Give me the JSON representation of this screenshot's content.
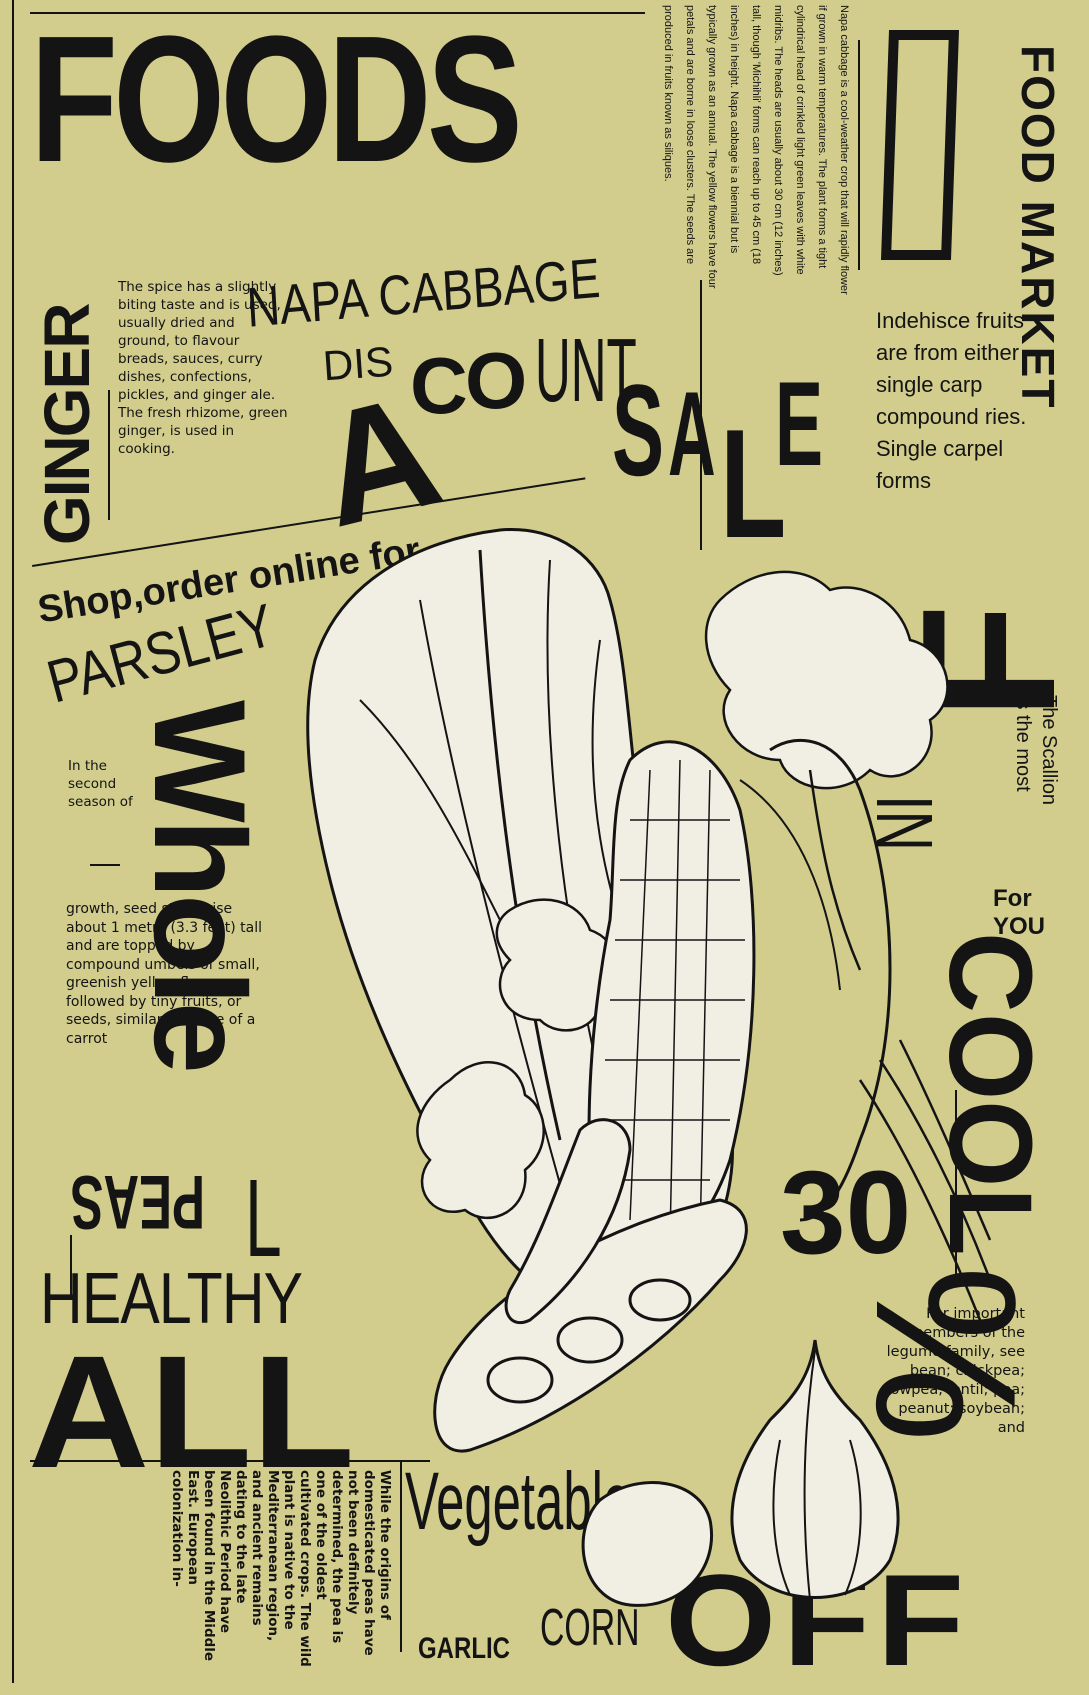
{
  "headline": "FOODS",
  "vertical_right": "FOOD MARKET",
  "napa_title": "NAPA CABBAGE",
  "discount": {
    "part1": "DIS",
    "part2": "C",
    "part3": "O",
    "part4": "UNT",
    "big_a": "A"
  },
  "sale": {
    "s": "S",
    "a": "A",
    "l": "L",
    "e": "E"
  },
  "ginger": "GINGER",
  "ginger_text": "The spice has a slightly biting taste and is used, usually dried and ground, to flavour breads, sauces, curry dishes, confections, pickles, and ginger ale. The fresh rhizome, green ginger, is used in cooking.",
  "napa_text": "Napa cabbage is a cool-weather crop that will rapidly flower if grown in warm temperatures. The plant forms a tight cylindrical head of crinkled light green leaves with white midribs. The heads are usually about 30 cm (12 inches) tall, though 'Michihli' forms can reach up to 45 cm (18 inches) in height. Napa cabbage is a biennial but is typically grown as an annual. The yellow flowers have four petals and are borne in loose clusters. The seeds are produced in fruits known as siliques.",
  "indehiscent_text": "Indehisce fruits are from either single carp compound ries. Single carpel forms",
  "shop_line": "Shop,order online for",
  "parsley": "PARSLEY",
  "whole": "Whole",
  "parsley_text_1": "In the second season of",
  "parsley_text_2": "growth, seed stalks rise about 1 metre (3.3 feet) tall and are topped by compound umbels of small, greenish yellow flowers followed by tiny fruits, or seeds, similar to those of a carrot",
  "peas": "PEAS",
  "l_mark": "L",
  "healthy": "HEALTHY",
  "all": "ALL",
  "big_f": "F",
  "scallion_text": "The Scallion is the most",
  "in_mark": "IN",
  "for_you": "For YOU",
  "cool": "COOL",
  "thirty": "30",
  "percent": "%",
  "legume_text": "For important members of the legume family, see bean; chickpea; cowpea; lentil; pea; peanut; soybean; and",
  "peas_history": "While the origins of domesticated peas have not been definitely determined, the pea is one of the oldest cultivated crops. The wild plant is native to the Mediterranean region, and ancient remains dating to the late Neolithic Period have been found in the Middle East. European colonization in-",
  "vegetables": "Vegetables",
  "garlic": "GARLIC",
  "corn": "CORN",
  "off": "OFF",
  "colors": {
    "background": "#d2cd8c",
    "ink": "#141414",
    "illustration": "#f1eee3"
  }
}
